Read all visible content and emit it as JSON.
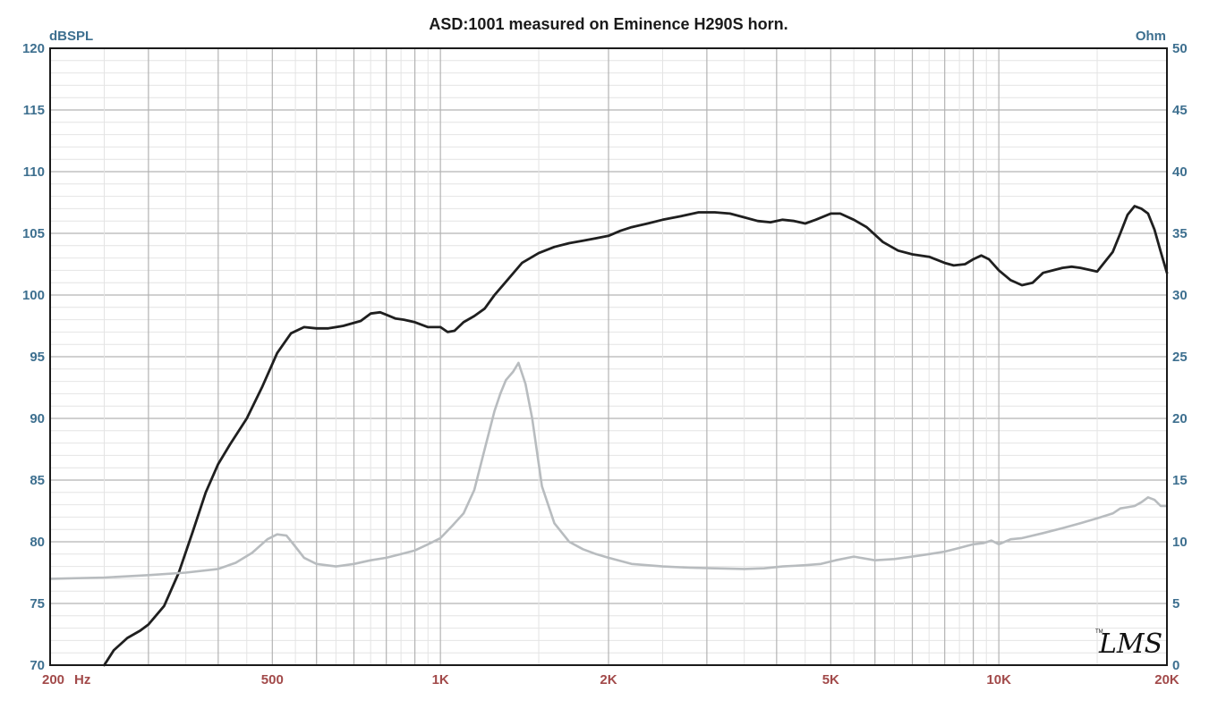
{
  "chart_data": {
    "type": "line",
    "title": "ASD:1001 measured on Eminence H290S horn.",
    "x_scale": "log",
    "xlim": [
      200,
      20000
    ],
    "ylim_left": [
      70,
      120
    ],
    "ylim_right": [
      0,
      50
    ],
    "ylabel_left": "dBSPL",
    "ylabel_right": "Ohm",
    "xunit": "Hz",
    "x_ticks": [
      {
        "value": 200,
        "label": "200"
      },
      {
        "value": 500,
        "label": "500"
      },
      {
        "value": 1000,
        "label": "1K"
      },
      {
        "value": 2000,
        "label": "2K"
      },
      {
        "value": 5000,
        "label": "5K"
      },
      {
        "value": 10000,
        "label": "10K"
      },
      {
        "value": 20000,
        "label": "20K"
      }
    ],
    "y_ticks_left": [
      "120",
      "115",
      "110",
      "105",
      "100",
      "95",
      "90",
      "85",
      "80",
      "75",
      "70"
    ],
    "y_ticks_right": [
      "50",
      "45",
      "40",
      "35",
      "30",
      "25",
      "20",
      "15",
      "10",
      "5",
      "0"
    ],
    "grid": true,
    "logo": "LMS",
    "series": [
      {
        "axis": "left",
        "color": "#1f1f1f",
        "x": [
          250,
          260,
          275,
          290,
          300,
          320,
          340,
          360,
          380,
          400,
          420,
          450,
          480,
          510,
          540,
          570,
          600,
          630,
          670,
          720,
          750,
          780,
          800,
          830,
          860,
          900,
          950,
          1000,
          1030,
          1060,
          1100,
          1150,
          1200,
          1250,
          1300,
          1400,
          1500,
          1600,
          1700,
          1800,
          1900,
          2000,
          2100,
          2200,
          2350,
          2500,
          2700,
          2900,
          3100,
          3300,
          3500,
          3700,
          3900,
          4100,
          4300,
          4500,
          4700,
          5000,
          5200,
          5500,
          5800,
          6200,
          6600,
          7000,
          7500,
          8000,
          8300,
          8700,
          9000,
          9300,
          9600,
          10000,
          10500,
          11000,
          11500,
          12000,
          12500,
          13000,
          13500,
          14000,
          15000,
          16000,
          16500,
          17000,
          17500,
          18000,
          18500,
          19000,
          19500,
          20000
        ],
        "y": [
          70.0,
          71.2,
          72.2,
          72.8,
          73.3,
          74.8,
          77.5,
          80.8,
          84.0,
          86.3,
          87.9,
          90.0,
          92.6,
          95.3,
          96.9,
          97.4,
          97.3,
          97.3,
          97.5,
          97.9,
          98.5,
          98.6,
          98.4,
          98.1,
          98.0,
          97.8,
          97.4,
          97.4,
          97.0,
          97.1,
          97.8,
          98.3,
          98.9,
          100.0,
          100.9,
          102.6,
          103.4,
          103.9,
          104.2,
          104.4,
          104.6,
          104.8,
          105.2,
          105.5,
          105.8,
          106.1,
          106.4,
          106.7,
          106.7,
          106.6,
          106.3,
          106.0,
          105.9,
          106.1,
          106.0,
          105.8,
          106.1,
          106.6,
          106.6,
          106.1,
          105.5,
          104.3,
          103.6,
          103.3,
          103.1,
          102.6,
          102.4,
          102.5,
          102.9,
          103.2,
          102.9,
          102.0,
          101.2,
          100.8,
          101.0,
          101.8,
          102.0,
          102.2,
          102.3,
          102.2,
          101.9,
          103.5,
          105.0,
          106.5,
          107.2,
          107.0,
          106.6,
          105.3,
          103.5,
          101.8
        ]
      },
      {
        "axis": "right",
        "color": "#b8bcbf",
        "x": [
          200,
          250,
          300,
          350,
          400,
          430,
          460,
          490,
          510,
          530,
          550,
          570,
          600,
          650,
          700,
          750,
          800,
          850,
          900,
          950,
          1000,
          1050,
          1100,
          1150,
          1200,
          1250,
          1280,
          1310,
          1350,
          1380,
          1420,
          1460,
          1520,
          1600,
          1700,
          1800,
          1900,
          2000,
          2200,
          2500,
          2800,
          3100,
          3500,
          3800,
          4100,
          4500,
          4800,
          5100,
          5500,
          6000,
          6500,
          7000,
          7500,
          8000,
          8500,
          9000,
          9400,
          9700,
          10000,
          10500,
          11000,
          12000,
          13000,
          14000,
          15000,
          16000,
          16500,
          17000,
          17500,
          18000,
          18500,
          19000,
          19500,
          20000
        ],
        "y": [
          7.0,
          7.1,
          7.3,
          7.5,
          7.8,
          8.3,
          9.1,
          10.2,
          10.6,
          10.5,
          9.6,
          8.7,
          8.2,
          8.0,
          8.2,
          8.5,
          8.7,
          9.0,
          9.3,
          9.8,
          10.3,
          11.3,
          12.3,
          14.2,
          17.5,
          20.6,
          22.0,
          23.1,
          23.8,
          24.5,
          22.8,
          20.0,
          14.5,
          11.5,
          10.0,
          9.4,
          9.0,
          8.7,
          8.2,
          8.0,
          7.9,
          7.85,
          7.8,
          7.85,
          8.0,
          8.1,
          8.2,
          8.5,
          8.8,
          8.5,
          8.6,
          8.8,
          9.0,
          9.2,
          9.5,
          9.8,
          9.9,
          10.1,
          9.8,
          10.2,
          10.3,
          10.7,
          11.1,
          11.5,
          11.9,
          12.3,
          12.7,
          12.8,
          12.9,
          13.2,
          13.6,
          13.4,
          12.9,
          12.9
        ]
      }
    ]
  }
}
